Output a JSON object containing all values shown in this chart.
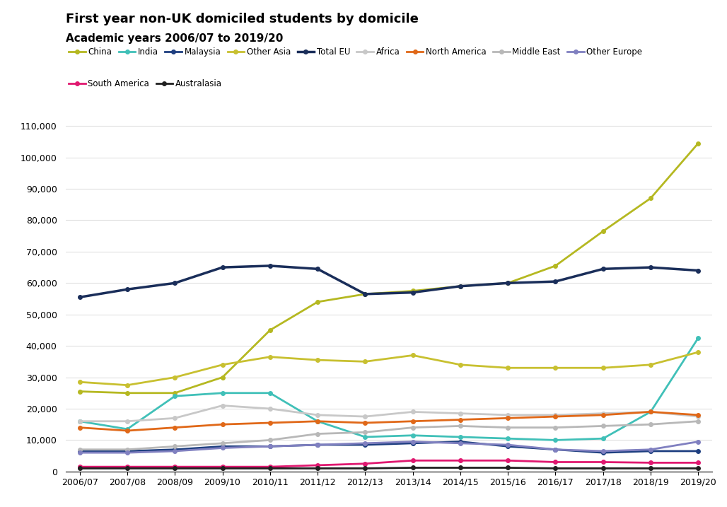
{
  "title": "First year non-UK domiciled students by domicile",
  "subtitle": "Academic years 2006/07 to 2019/20",
  "x_labels": [
    "2006/07",
    "2007/08",
    "2008/09",
    "2009/10",
    "2010/11",
    "2011/12",
    "2012/13",
    "2013/14",
    "2014/15",
    "2015/16",
    "2016/17",
    "2017/18",
    "2018/19",
    "2019/20"
  ],
  "series": [
    {
      "name": "China",
      "color": "#b5b821",
      "linewidth": 2.0,
      "marker": "o",
      "markersize": 4,
      "values": [
        25500,
        25000,
        25000,
        30000,
        45000,
        54000,
        56500,
        57500,
        59000,
        60000,
        65500,
        76500,
        87000,
        104500
      ]
    },
    {
      "name": "India",
      "color": "#40c0b8",
      "linewidth": 2.0,
      "marker": "o",
      "markersize": 4,
      "values": [
        16000,
        13500,
        24000,
        25000,
        25000,
        16000,
        11000,
        11500,
        11000,
        10500,
        10000,
        10500,
        19000,
        42500
      ]
    },
    {
      "name": "Malaysia",
      "color": "#1e3f80",
      "linewidth": 2.0,
      "marker": "o",
      "markersize": 4,
      "values": [
        6500,
        6500,
        7000,
        8000,
        8000,
        8500,
        8500,
        9000,
        9500,
        8000,
        7000,
        6000,
        6500,
        6500
      ]
    },
    {
      "name": "Other Asia",
      "color": "#c8c030",
      "linewidth": 2.0,
      "marker": "o",
      "markersize": 4,
      "values": [
        28500,
        27500,
        30000,
        34000,
        36500,
        35500,
        35000,
        37000,
        34000,
        33000,
        33000,
        33000,
        34000,
        38000
      ]
    },
    {
      "name": "Total EU",
      "color": "#1a2e5a",
      "linewidth": 2.5,
      "marker": "o",
      "markersize": 4,
      "values": [
        55500,
        58000,
        60000,
        65000,
        65500,
        64500,
        56500,
        57000,
        59000,
        60000,
        60500,
        64500,
        65000,
        64000
      ]
    },
    {
      "name": "Africa",
      "color": "#c8c8c8",
      "linewidth": 2.0,
      "marker": "o",
      "markersize": 4,
      "values": [
        16000,
        16000,
        17000,
        21000,
        20000,
        18000,
        17500,
        19000,
        18500,
        18000,
        18000,
        18500,
        19000,
        17500
      ]
    },
    {
      "name": "North America",
      "color": "#e06818",
      "linewidth": 2.0,
      "marker": "o",
      "markersize": 4,
      "values": [
        14000,
        13000,
        14000,
        15000,
        15500,
        16000,
        15500,
        16000,
        16500,
        17000,
        17500,
        18000,
        19000,
        18000
      ]
    },
    {
      "name": "Middle East",
      "color": "#b8b8b8",
      "linewidth": 2.0,
      "marker": "o",
      "markersize": 4,
      "values": [
        7000,
        7000,
        8000,
        9000,
        10000,
        12000,
        12500,
        14000,
        14500,
        14000,
        14000,
        14500,
        15000,
        16000
      ]
    },
    {
      "name": "Other Europe",
      "color": "#8080c0",
      "linewidth": 2.0,
      "marker": "o",
      "markersize": 4,
      "values": [
        6000,
        6000,
        6500,
        7500,
        8000,
        8500,
        9000,
        9500,
        9000,
        8500,
        7000,
        6500,
        7000,
        9500
      ]
    },
    {
      "name": "South America",
      "color": "#e01870",
      "linewidth": 2.0,
      "marker": "o",
      "markersize": 4,
      "values": [
        1500,
        1500,
        1500,
        1500,
        1500,
        2000,
        2500,
        3500,
        3500,
        3500,
        3000,
        3000,
        2800,
        2800
      ]
    },
    {
      "name": "Australasia",
      "color": "#202020",
      "linewidth": 2.0,
      "marker": "o",
      "markersize": 4,
      "values": [
        1000,
        1000,
        1000,
        1000,
        1000,
        1000,
        1000,
        1200,
        1200,
        1200,
        1000,
        1000,
        1000,
        1000
      ]
    }
  ],
  "ylim": [
    0,
    113000
  ],
  "yticks": [
    0,
    10000,
    20000,
    30000,
    40000,
    50000,
    60000,
    70000,
    80000,
    90000,
    100000,
    110000
  ],
  "background_color": "#ffffff",
  "grid_color": "#e0e0e0",
  "title_fontsize": 13,
  "subtitle_fontsize": 11,
  "legend_fontsize": 8.5,
  "tick_fontsize": 9,
  "legend_row1": [
    "China",
    "India",
    "Malaysia",
    "Other Asia",
    "Total EU",
    "Africa",
    "North America",
    "Middle East",
    "Other Europe"
  ],
  "legend_row2": [
    "South America",
    "Australasia"
  ]
}
